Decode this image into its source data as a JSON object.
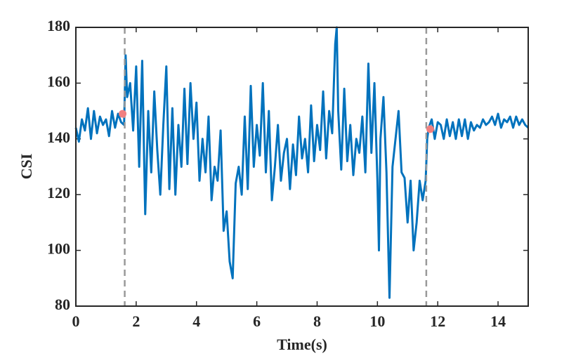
{
  "chart_data": {
    "type": "line",
    "x_label": "Time(s)",
    "y_label": "CSI",
    "x": [
      0,
      0.1,
      0.2,
      0.3,
      0.4,
      0.5,
      0.6,
      0.7,
      0.8,
      0.9,
      1.0,
      1.1,
      1.2,
      1.3,
      1.4,
      1.5,
      1.6,
      1.65,
      1.7,
      1.8,
      1.9,
      2.0,
      2.1,
      2.2,
      2.3,
      2.4,
      2.5,
      2.6,
      2.7,
      2.8,
      2.9,
      3.0,
      3.1,
      3.2,
      3.3,
      3.4,
      3.5,
      3.6,
      3.7,
      3.8,
      3.9,
      4.0,
      4.1,
      4.2,
      4.3,
      4.4,
      4.5,
      4.6,
      4.7,
      4.8,
      4.9,
      5.0,
      5.1,
      5.2,
      5.3,
      5.4,
      5.5,
      5.6,
      5.7,
      5.8,
      5.9,
      6.0,
      6.1,
      6.2,
      6.3,
      6.4,
      6.5,
      6.6,
      6.7,
      6.8,
      6.9,
      7.0,
      7.1,
      7.2,
      7.3,
      7.4,
      7.5,
      7.6,
      7.7,
      7.8,
      7.9,
      8.0,
      8.1,
      8.2,
      8.3,
      8.4,
      8.5,
      8.6,
      8.65,
      8.7,
      8.8,
      8.9,
      9.0,
      9.1,
      9.2,
      9.3,
      9.4,
      9.5,
      9.6,
      9.7,
      9.8,
      9.9,
      10.0,
      10.05,
      10.1,
      10.2,
      10.3,
      10.4,
      10.5,
      10.6,
      10.7,
      10.8,
      10.9,
      11.0,
      11.1,
      11.2,
      11.3,
      11.4,
      11.5,
      11.6,
      11.65,
      11.7,
      11.8,
      11.9,
      12.0,
      12.1,
      12.2,
      12.3,
      12.4,
      12.5,
      12.6,
      12.7,
      12.8,
      12.9,
      13.0,
      13.1,
      13.2,
      13.3,
      13.4,
      13.5,
      13.6,
      13.7,
      13.8,
      13.9,
      14.0,
      14.1,
      14.2,
      14.3,
      14.4,
      14.5,
      14.6,
      14.7,
      14.8,
      14.9,
      15.0
    ],
    "series": [
      {
        "color": "#0072bd",
        "values": [
          144,
          139,
          147,
          143,
          151,
          140,
          150,
          142,
          148,
          145,
          147,
          141,
          150,
          144,
          149,
          146,
          145,
          170,
          155,
          160,
          143,
          166,
          130,
          168,
          113,
          150,
          128,
          157,
          136,
          120,
          145,
          166,
          122,
          151,
          120,
          145,
          130,
          158,
          131,
          160,
          140,
          153,
          125,
          140,
          128,
          148,
          118,
          130,
          125,
          143,
          107,
          114,
          96,
          90,
          124,
          130,
          120,
          148,
          122,
          159,
          130,
          145,
          134,
          160,
          128,
          150,
          118,
          130,
          145,
          125,
          135,
          140,
          122,
          138,
          127,
          148,
          133,
          140,
          128,
          152,
          132,
          145,
          136,
          157,
          133,
          150,
          142,
          174,
          180,
          150,
          129,
          158,
          132,
          145,
          127,
          140,
          135,
          148,
          128,
          167,
          135,
          160,
          125,
          100,
          140,
          155,
          128,
          83,
          130,
          140,
          150,
          128,
          126,
          110,
          125,
          100,
          110,
          125,
          118,
          125,
          140,
          144,
          147,
          140,
          146,
          145,
          140,
          147,
          141,
          146,
          140,
          147,
          141,
          147,
          140,
          146,
          143,
          145,
          144,
          147,
          145,
          146,
          148,
          145,
          149,
          144,
          147,
          146,
          148,
          144,
          148,
          145,
          147,
          145,
          144
        ]
      }
    ],
    "highlight_points": {
      "x": [
        1.55,
        11.75
      ],
      "values": [
        149,
        143.5
      ],
      "color": "#f08080"
    },
    "vlines": {
      "x": [
        1.62,
        11.62
      ],
      "color": "#999999"
    },
    "xlim": [
      0,
      15
    ],
    "xticks": [
      0,
      2,
      4,
      6,
      8,
      10,
      12,
      14
    ],
    "ylim": [
      80,
      180
    ],
    "yticks": [
      80,
      100,
      120,
      140,
      160,
      180
    ]
  }
}
